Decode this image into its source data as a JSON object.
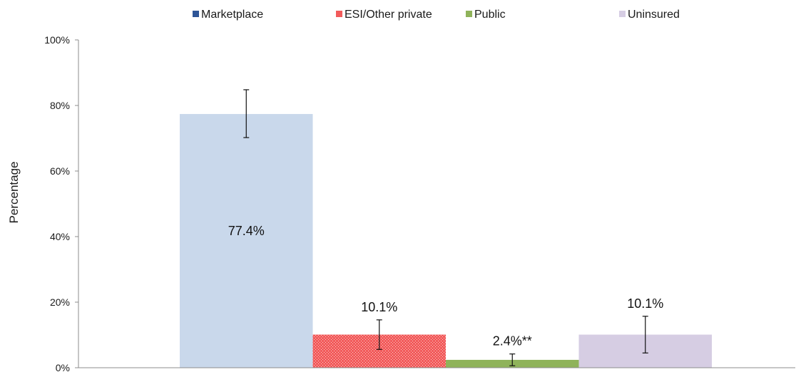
{
  "chart_data": {
    "type": "bar",
    "title": "",
    "xlabel": "",
    "ylabel": "Percentage",
    "ylim": [
      0,
      100
    ],
    "yticks": [
      "0%",
      "20%",
      "40%",
      "60%",
      "80%",
      "100%"
    ],
    "legend_position": "top",
    "grid": false,
    "series": [
      {
        "name": "Marketplace",
        "value": 77.4,
        "label": "77.4%",
        "error_low": 70.2,
        "error_high": 84.8,
        "legend_color": "#2e5597",
        "bar_color": "#c9d8eb",
        "hatched": false
      },
      {
        "name": "ESI/Other private",
        "value": 10.1,
        "label": "10.1%",
        "error_low": 5.6,
        "error_high": 14.6,
        "legend_color": "#f25b5b",
        "bar_color": "#f25b5b",
        "hatched": true
      },
      {
        "name": "Public",
        "value": 2.4,
        "label": "2.4%**",
        "error_low": 0.6,
        "error_high": 4.2,
        "legend_color": "#8fb35a",
        "bar_color": "#8fb35a",
        "hatched": false
      },
      {
        "name": "Uninsured",
        "value": 10.1,
        "label": "10.1%",
        "error_low": 4.5,
        "error_high": 15.7,
        "legend_color": "#d6cde3",
        "bar_color": "#d6cde3",
        "hatched": false
      }
    ]
  }
}
